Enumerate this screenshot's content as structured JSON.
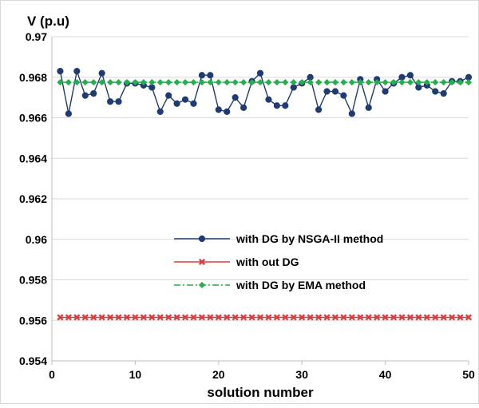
{
  "chart_data": {
    "type": "line",
    "ylabel": "V (p.u)",
    "xlabel": "solution number",
    "xlim": [
      0,
      50
    ],
    "ylim": [
      0.954,
      0.97
    ],
    "x_ticks": [
      0,
      10,
      20,
      30,
      40,
      50
    ],
    "y_ticks": [
      0.954,
      0.956,
      0.958,
      0.96,
      0.962,
      0.964,
      0.966,
      0.968,
      0.97
    ],
    "y_tick_labels": [
      "0.954",
      "0.956",
      "0.958",
      "0.96",
      "0.962",
      "0.964",
      "0.966",
      "0.968",
      "0.97"
    ],
    "grid": "horizontal",
    "legend_position": "center-right",
    "x": [
      1,
      2,
      3,
      4,
      5,
      6,
      7,
      8,
      9,
      10,
      11,
      12,
      13,
      14,
      15,
      16,
      17,
      18,
      19,
      20,
      21,
      22,
      23,
      24,
      25,
      26,
      27,
      28,
      29,
      30,
      31,
      32,
      33,
      34,
      35,
      36,
      37,
      38,
      39,
      40,
      41,
      42,
      43,
      44,
      45,
      46,
      47,
      48,
      49,
      50
    ],
    "series": [
      {
        "name": "with DG by NSGA-II method",
        "color": "#1f3b73",
        "marker": "circle",
        "line": "solid",
        "values": [
          0.9683,
          0.9662,
          0.9683,
          0.9671,
          0.9672,
          0.9682,
          0.9668,
          0.9668,
          0.9677,
          0.9677,
          0.9676,
          0.9675,
          0.9663,
          0.9671,
          0.9667,
          0.9669,
          0.9667,
          0.9681,
          0.9681,
          0.9664,
          0.9663,
          0.967,
          0.9665,
          0.9678,
          0.9682,
          0.9669,
          0.9666,
          0.9666,
          0.9675,
          0.9677,
          0.968,
          0.9664,
          0.9673,
          0.9673,
          0.9671,
          0.9662,
          0.9679,
          0.9665,
          0.9679,
          0.9673,
          0.9677,
          0.968,
          0.9681,
          0.9675,
          0.9676,
          0.9673,
          0.9672,
          0.9678,
          0.9678,
          0.968
        ]
      },
      {
        "name": "with out DG",
        "color": "#e03a3a",
        "marker": "x",
        "line": "solid",
        "values": [
          0.95615,
          0.95615,
          0.95615,
          0.95615,
          0.95615,
          0.95615,
          0.95615,
          0.95615,
          0.95615,
          0.95615,
          0.95615,
          0.95615,
          0.95615,
          0.95615,
          0.95615,
          0.95615,
          0.95615,
          0.95615,
          0.95615,
          0.95615,
          0.95615,
          0.95615,
          0.95615,
          0.95615,
          0.95615,
          0.95615,
          0.95615,
          0.95615,
          0.95615,
          0.95615,
          0.95615,
          0.95615,
          0.95615,
          0.95615,
          0.95615,
          0.95615,
          0.95615,
          0.95615,
          0.95615,
          0.95615,
          0.95615,
          0.95615,
          0.95615,
          0.95615,
          0.95615,
          0.95615,
          0.95615,
          0.95615,
          0.95615,
          0.95615
        ]
      },
      {
        "name": "with DG by EMA method",
        "color": "#22b04b",
        "marker": "diamond",
        "line": "dashdot",
        "values": [
          0.96775,
          0.96775,
          0.96775,
          0.96775,
          0.96775,
          0.96775,
          0.96775,
          0.96775,
          0.96775,
          0.96775,
          0.96775,
          0.96775,
          0.96775,
          0.96775,
          0.96775,
          0.96775,
          0.96775,
          0.96775,
          0.96775,
          0.96775,
          0.96775,
          0.96775,
          0.96775,
          0.96775,
          0.96775,
          0.96775,
          0.96775,
          0.96775,
          0.96775,
          0.96775,
          0.96775,
          0.96775,
          0.96775,
          0.96775,
          0.96775,
          0.96775,
          0.96775,
          0.96775,
          0.96775,
          0.96775,
          0.96775,
          0.96775,
          0.96775,
          0.96775,
          0.96775,
          0.96775,
          0.96775,
          0.96775,
          0.96775,
          0.96775
        ]
      }
    ]
  }
}
